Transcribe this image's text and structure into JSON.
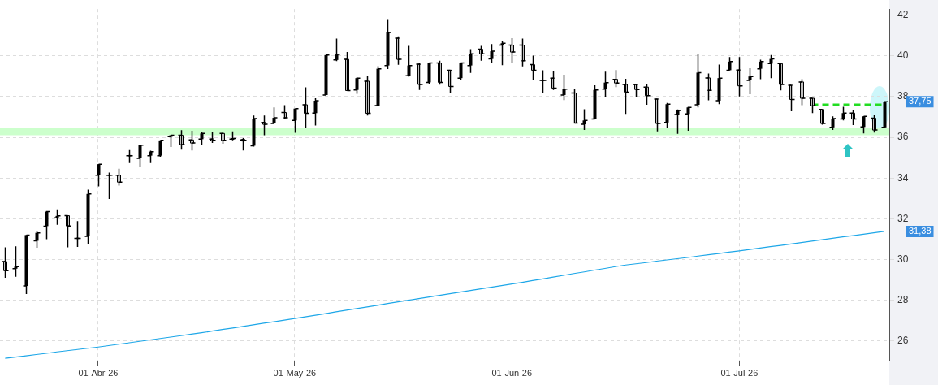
{
  "chart_data": {
    "type": "candlestick",
    "color": "#000000",
    "colors": [
      "#ffffff",
      "#000000",
      "#000000",
      "#000000",
      "#000000",
      "#000000",
      "#ffffff",
      "#000000",
      "#000000",
      "#000000",
      "#000000",
      "#ffffff",
      "#000000",
      "#000000",
      "#000000",
      "#000000",
      "#000000",
      "#ffffff",
      "#ffffff",
      "#000000",
      "#ffffff",
      "#ffffff",
      "#000000",
      "#ffffff",
      "#000000",
      "#ffffff",
      "#000000",
      "#ffffff",
      "#000000",
      "#ffffff",
      "#000000",
      "#000000",
      "#000000",
      "#ffffff",
      "#000000",
      "#ffffff",
      "#000000",
      "#000000",
      "#ffffff",
      "#000000",
      "#ffffff",
      "#000000",
      "#ffffff",
      "#ffffff",
      "#000000",
      "#000000",
      "#ffffff",
      "#000000",
      "#000000",
      "#ffffff",
      "#ffffff",
      "#ffffff",
      "#000000",
      "#ffffff",
      "#000000",
      "#ffffff",
      "#000000",
      "#000000",
      "#000000",
      "#ffffff",
      "#ffffff",
      "#ffffff",
      "#ffffff",
      "#ffffff",
      "#000000",
      "#000000",
      "#000000",
      "#000000",
      "#ffffff",
      "#000000",
      "#000000",
      "#ffffff",
      "#000000",
      "#000000",
      "#000000",
      "#ffffff",
      "#ffffff",
      "#ffffff",
      "#ffffff",
      "#ffffff",
      "#000000",
      "#000000",
      "#ffffff",
      "#000000",
      "#ffffff",
      "#000000"
    ],
    "categories": [
      null,
      null,
      null,
      null,
      null,
      null,
      null,
      null,
      null,
      "01-Abr-26",
      null,
      null,
      null,
      null,
      null,
      null,
      null,
      null,
      null,
      null,
      null,
      null,
      null,
      null,
      null,
      null,
      null,
      null,
      "01-May-26",
      null,
      null,
      null,
      null,
      null,
      null,
      null,
      null,
      null,
      null,
      null,
      null,
      null,
      null,
      null,
      null,
      null,
      null,
      null,
      null,
      "01-Jun-26",
      null,
      null,
      null,
      null,
      null,
      null,
      null,
      null,
      null,
      null,
      null,
      null,
      null,
      null,
      null,
      null,
      null,
      null,
      null,
      null,
      null,
      "01-Jul-26",
      null,
      null,
      null,
      null,
      null,
      null,
      null,
      null,
      null,
      null,
      null,
      null,
      null,
      null
    ],
    "ohlc": [
      [
        29.9,
        30.6,
        29.1,
        29.45
      ],
      [
        29.55,
        30.65,
        29.15,
        29.65
      ],
      [
        28.7,
        31.2,
        28.3,
        31.2
      ],
      [
        30.92,
        31.42,
        30.58,
        31.31
      ],
      [
        31.64,
        32.38,
        31.0,
        32.35
      ],
      [
        32.04,
        32.46,
        31.7,
        32.14
      ],
      [
        32.15,
        32.15,
        30.6,
        31.65
      ],
      [
        31.04,
        31.88,
        30.62,
        31.04
      ],
      [
        31.14,
        33.43,
        30.74,
        33.22
      ],
      [
        34.14,
        34.68,
        33.59,
        34.68
      ],
      [
        34.14,
        34.27,
        32.97,
        34.14
      ],
      [
        34.14,
        34.46,
        33.63,
        33.8
      ],
      [
        35.1,
        35.38,
        34.74,
        35.1
      ],
      [
        34.97,
        35.62,
        34.53,
        35.62
      ],
      [
        35.1,
        35.35,
        34.74,
        35.3
      ],
      [
        35.1,
        35.85,
        35.05,
        35.85
      ],
      [
        36.03,
        36.1,
        35.53,
        36.1
      ],
      [
        36.1,
        36.35,
        35.4,
        35.64
      ],
      [
        35.87,
        36.32,
        35.36,
        35.72
      ],
      [
        35.91,
        36.28,
        35.64,
        36.19
      ],
      [
        35.91,
        36.28,
        35.72,
        35.85
      ],
      [
        36.19,
        36.23,
        35.68,
        35.85
      ],
      [
        35.91,
        36.29,
        35.85,
        35.94
      ],
      [
        35.87,
        35.96,
        35.36,
        35.85
      ],
      [
        35.59,
        37.07,
        35.55,
        36.92
      ],
      [
        36.73,
        37.07,
        36.1,
        36.64
      ],
      [
        36.68,
        37.47,
        36.68,
        36.96
      ],
      [
        37.22,
        37.58,
        36.92,
        36.96
      ],
      [
        36.83,
        37.41,
        36.22,
        37.41
      ],
      [
        37.6,
        38.46,
        36.45,
        37.18
      ],
      [
        37.19,
        37.92,
        36.58,
        37.8
      ],
      [
        38.08,
        40.04,
        38.08,
        40.04
      ],
      [
        39.8,
        40.85,
        39.74,
        40.07
      ],
      [
        39.83,
        40.19,
        38.3,
        38.3
      ],
      [
        38.33,
        38.95,
        38.14,
        38.91
      ],
      [
        38.76,
        39.01,
        37.07,
        37.18
      ],
      [
        37.56,
        39.5,
        37.56,
        39.37
      ],
      [
        39.53,
        41.77,
        39.36,
        41.15
      ],
      [
        40.87,
        40.96,
        39.56,
        39.83
      ],
      [
        39.03,
        40.49,
        38.99,
        39.53
      ],
      [
        39.59,
        39.63,
        38.33,
        38.6
      ],
      [
        38.7,
        39.65,
        38.63,
        39.65
      ],
      [
        39.65,
        39.76,
        38.59,
        38.7
      ],
      [
        39.3,
        39.3,
        38.2,
        38.5
      ],
      [
        38.91,
        39.65,
        38.82,
        39.65
      ],
      [
        39.53,
        40.33,
        39.17,
        40.1
      ],
      [
        40.33,
        40.49,
        39.76,
        40.1
      ],
      [
        39.85,
        40.58,
        39.65,
        40.23
      ],
      [
        40.53,
        40.72,
        39.55,
        40.62
      ],
      [
        40.53,
        40.87,
        39.63,
        40.19
      ],
      [
        40.53,
        40.85,
        39.49,
        39.76
      ],
      [
        39.57,
        40.01,
        38.8,
        39.3
      ],
      [
        38.8,
        39.3,
        38.2,
        38.8
      ],
      [
        38.91,
        39.27,
        38.33,
        38.42
      ],
      [
        38.08,
        39.08,
        37.83,
        38.37
      ],
      [
        38.18,
        38.37,
        36.68,
        36.7
      ],
      [
        36.64,
        37.38,
        36.36,
        36.83
      ],
      [
        36.9,
        38.56,
        36.9,
        38.33
      ],
      [
        38.37,
        39.23,
        37.96,
        38.69
      ],
      [
        38.85,
        39.31,
        38.47,
        38.67
      ],
      [
        38.6,
        38.88,
        37.15,
        38.22
      ],
      [
        38.6,
        38.63,
        37.99,
        38.35
      ],
      [
        38.47,
        38.63,
        37.6,
        38.05
      ],
      [
        37.88,
        37.9,
        36.29,
        36.68
      ],
      [
        36.73,
        37.69,
        36.45,
        37.63
      ],
      [
        37.12,
        37.37,
        36.17,
        37.32
      ],
      [
        37.15,
        37.5,
        36.32,
        37.47
      ],
      [
        37.6,
        40.08,
        37.47,
        39.18
      ],
      [
        38.92,
        39.14,
        37.82,
        38.31
      ],
      [
        37.8,
        39.57,
        37.63,
        38.91
      ],
      [
        39.3,
        39.94,
        39.3,
        39.72
      ],
      [
        39.31,
        39.94,
        38.01,
        38.53
      ],
      [
        38.8,
        39.4,
        38.12,
        38.99
      ],
      [
        39.37,
        39.81,
        38.86,
        39.72
      ],
      [
        39.62,
        40.04,
        38.91,
        39.85
      ],
      [
        39.62,
        39.62,
        38.31,
        38.6
      ],
      [
        38.56,
        38.56,
        37.28,
        37.86
      ],
      [
        38.72,
        38.86,
        37.58,
        37.92
      ],
      [
        37.92,
        37.92,
        37.19,
        37.55
      ],
      [
        37.37,
        37.37,
        36.62,
        36.68
      ],
      [
        36.49,
        37.03,
        36.36,
        36.92
      ],
      [
        36.9,
        37.5,
        36.83,
        37.19
      ],
      [
        37.19,
        37.35,
        36.6,
        36.9
      ],
      [
        36.51,
        37.03,
        36.19,
        37.03
      ],
      [
        36.94,
        37.09,
        36.23,
        36.36
      ],
      [
        36.49,
        37.78,
        36.49,
        37.75
      ]
    ],
    "series": [
      {
        "type": "line",
        "color": "#1ea7e8",
        "values": [
          25.15,
          25.21,
          25.27,
          25.33,
          25.39,
          25.46,
          25.52,
          25.58,
          25.64,
          25.7,
          25.77,
          25.84,
          25.91,
          25.98,
          26.05,
          26.12,
          26.19,
          26.26,
          26.33,
          26.4,
          26.48,
          26.56,
          26.63,
          26.71,
          26.79,
          26.87,
          26.94,
          27.02,
          27.1,
          27.18,
          27.26,
          27.34,
          27.43,
          27.51,
          27.59,
          27.67,
          27.75,
          27.84,
          27.92,
          28.0,
          28.08,
          28.16,
          28.24,
          28.32,
          28.4,
          28.48,
          28.56,
          28.64,
          28.72,
          28.8,
          28.88,
          28.97,
          29.05,
          29.14,
          29.22,
          29.31,
          29.39,
          29.48,
          29.56,
          29.65,
          29.73,
          29.79,
          29.85,
          29.92,
          29.98,
          30.04,
          30.1,
          30.17,
          30.23,
          30.29,
          30.36,
          30.42,
          30.49,
          30.56,
          30.63,
          30.69,
          30.76,
          30.83,
          30.9,
          30.97,
          31.04,
          31.11,
          31.17,
          31.24,
          31.31,
          31.38
        ]
      },
      {
        "type": "line",
        "color": "#22dd22",
        "line_style": "dashed",
        "values": [
          null,
          null,
          null,
          null,
          null,
          null,
          null,
          null,
          null,
          null,
          null,
          null,
          null,
          null,
          null,
          null,
          null,
          null,
          null,
          null,
          null,
          null,
          null,
          null,
          null,
          null,
          null,
          null,
          null,
          null,
          null,
          null,
          null,
          null,
          null,
          null,
          null,
          null,
          null,
          null,
          null,
          null,
          null,
          null,
          null,
          null,
          null,
          null,
          null,
          null,
          null,
          null,
          null,
          null,
          null,
          null,
          null,
          null,
          null,
          null,
          null,
          null,
          null,
          null,
          null,
          null,
          null,
          null,
          null,
          null,
          null,
          null,
          null,
          null,
          null,
          null,
          null,
          null,
          37.6,
          37.6,
          37.6,
          37.6,
          37.6,
          37.6,
          37.6,
          37.6
        ]
      }
    ],
    "bands": [
      {
        "axis": "y",
        "from": 36.1,
        "to": 36.45,
        "color": "#ccffcc"
      }
    ],
    "annotations": [
      "37,75",
      "31,38"
    ],
    "ylim": [
      25,
      42.3
    ],
    "yticks": [
      26,
      28,
      30,
      32,
      34,
      36,
      38,
      40,
      42
    ],
    "grid": true,
    "legend": false,
    "marker": "none"
  }
}
